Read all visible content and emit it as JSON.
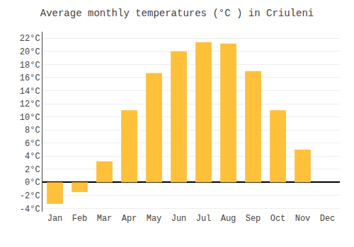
{
  "chart_data": {
    "type": "bar",
    "title": "Average monthly temperatures (°C ) in Criuleni",
    "categories": [
      "Jan",
      "Feb",
      "Mar",
      "Apr",
      "May",
      "Jun",
      "Jul",
      "Aug",
      "Sep",
      "Oct",
      "Nov",
      "Dec"
    ],
    "values": [
      -3.3,
      -1.5,
      3.2,
      11.0,
      16.7,
      20.0,
      21.4,
      21.2,
      17.0,
      11.0,
      5.0,
      0.0
    ],
    "color": "#FFC03A",
    "ylim": [
      -4.5,
      23
    ],
    "yticks": [
      {
        "value": -4,
        "label": "-4°C"
      },
      {
        "value": -2,
        "label": "-2°C"
      },
      {
        "value": 0,
        "label": "0°C"
      },
      {
        "value": 2,
        "label": "2°C"
      },
      {
        "value": 4,
        "label": "4°C"
      },
      {
        "value": 6,
        "label": "6°C"
      },
      {
        "value": 8,
        "label": "8°C"
      },
      {
        "value": 10,
        "label": "10°C"
      },
      {
        "value": 12,
        "label": "12°C"
      },
      {
        "value": 14,
        "label": "14°C"
      },
      {
        "value": 16,
        "label": "16°C"
      },
      {
        "value": 18,
        "label": "18°C"
      },
      {
        "value": 20,
        "label": "20°C"
      },
      {
        "value": 22,
        "label": "22°C"
      }
    ],
    "grid": true
  }
}
